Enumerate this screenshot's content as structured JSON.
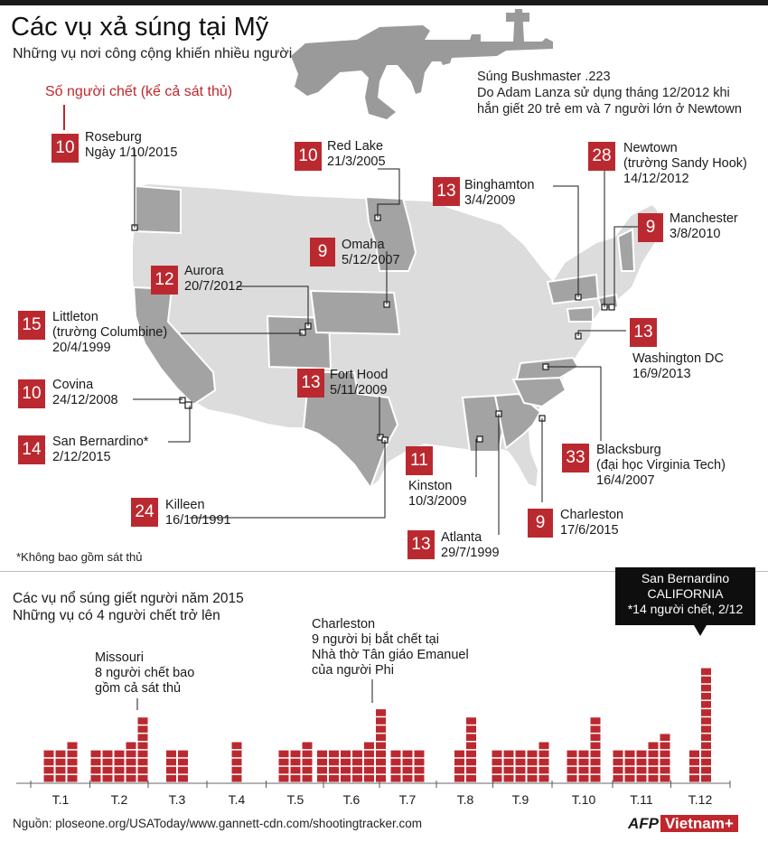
{
  "title": "Các vụ xả súng tại Mỹ",
  "subtitle": "Những vụ nơi công cộng khiến nhiều người chết nhất",
  "gun_note": {
    "line1": "Súng Bushmaster .223",
    "line2": "Do Adam Lanza sử dụng tháng 12/2012 khi",
    "line3": "hắn giết 20 trẻ em và  7 người lớn ở Newtown"
  },
  "legend_label": "Số người chết (kể cả sát thủ)",
  "shootings": [
    {
      "deaths": "10",
      "place": "Roseburg",
      "date": "Ngày 1/10/2015"
    },
    {
      "deaths": "10",
      "place": "Red Lake",
      "date": "21/3/2005"
    },
    {
      "deaths": "13",
      "place": "Binghamton",
      "date": "3/4/2009"
    },
    {
      "deaths": "28",
      "place": "Newtown",
      "extra": "(trường Sandy Hook)",
      "date": "14/12/2012"
    },
    {
      "deaths": "9",
      "place": "Manchester",
      "date": "3/8/2010"
    },
    {
      "deaths": "9",
      "place": "Omaha",
      "date": "5/12/2007"
    },
    {
      "deaths": "12",
      "place": "Aurora",
      "date": "20/7/2012"
    },
    {
      "deaths": "15",
      "place": "Littleton",
      "extra": "(trường Columbine)",
      "date": "20/4/1999"
    },
    {
      "deaths": "13",
      "place": "Washington DC",
      "date": "16/9/2013"
    },
    {
      "deaths": "10",
      "place": "Covina",
      "date": "24/12/2008"
    },
    {
      "deaths": "13",
      "place": "Fort Hood",
      "date": "5/11/2009"
    },
    {
      "deaths": "14",
      "place": "San Bernardino*",
      "date": "2/12/2015"
    },
    {
      "deaths": "33",
      "place": "Blacksburg",
      "extra": "(đại học Virginia Tech)",
      "date": "16/4/2007"
    },
    {
      "deaths": "11",
      "place": "Kinston",
      "date": "10/3/2009"
    },
    {
      "deaths": "24",
      "place": "Killeen",
      "date": "16/10/1991"
    },
    {
      "deaths": "9",
      "place": "Charleston",
      "date": "17/6/2015"
    },
    {
      "deaths": "13",
      "place": "Atlanta",
      "date": "29/7/1999"
    }
  ],
  "footnote": "*Không bao gồm sát thủ",
  "section2": {
    "title_line1": "Các vụ nổ súng giết người năm 2015",
    "title_line2": "Những vụ có 4 người chết trở lên"
  },
  "annotations": {
    "missouri": [
      "Missouri",
      "8 người chết bao",
      "gồm cả sát thủ"
    ],
    "charleston": [
      "Charleston",
      "9 người bị bắt chết tại",
      "Nhà thờ Tân giáo Emanuel",
      "của người Phi"
    ],
    "callout": [
      "San Bernardino",
      "CALIFORNIA",
      "*14 người chết, 2/12"
    ]
  },
  "chart_data": {
    "type": "bar",
    "title": "Các vụ nổ súng giết người năm 2015",
    "subtitle": "Những vụ có 4 người chết trở lên",
    "unit": "người chết",
    "categories": [
      "T.1",
      "T.2",
      "T.3",
      "T.4",
      "T.5",
      "T.6",
      "T.7",
      "T.8",
      "T.9",
      "T.10",
      "T.11",
      "T.12"
    ],
    "incidents": [
      [
        4,
        4,
        5
      ],
      [
        4,
        4,
        4,
        5,
        8
      ],
      [
        4,
        4
      ],
      [
        5
      ],
      [
        4,
        4,
        5
      ],
      [
        4,
        4,
        4,
        4,
        5,
        9
      ],
      [
        4,
        4,
        4
      ],
      [
        4,
        8
      ],
      [
        4,
        4,
        4,
        4,
        5
      ],
      [
        4,
        4,
        8
      ],
      [
        4,
        4,
        4,
        5,
        6
      ],
      [
        4,
        14
      ]
    ]
  },
  "source": "Nguồn: ploseone.org/USAToday/www.gannett-cdn.com/shootingtracker.com",
  "brand": {
    "afp": "AFP",
    "vn": "Vietnam+"
  },
  "colors": {
    "accent": "#bb2930",
    "map_light": "#dcdcdc",
    "map_dark": "#a3a3a3",
    "bar": "#bb2930"
  }
}
